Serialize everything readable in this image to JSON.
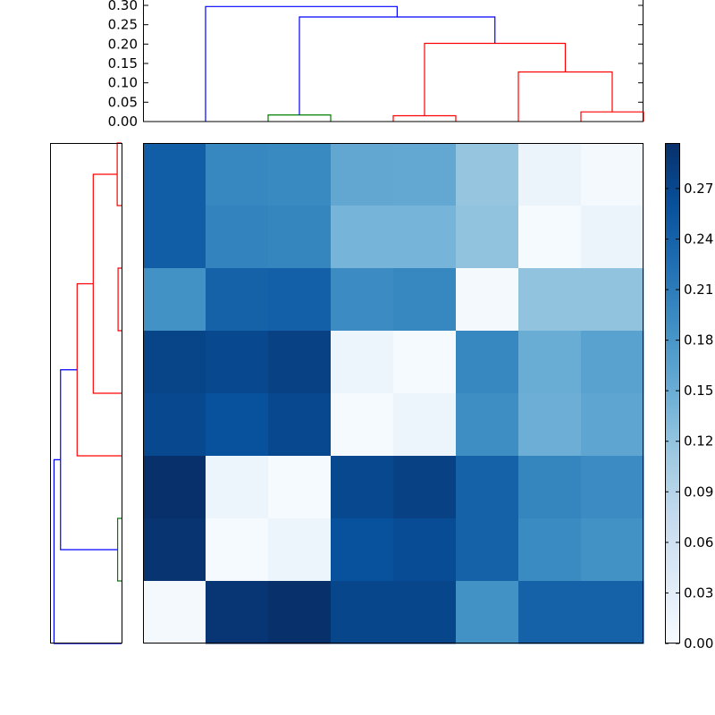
{
  "chart_data": [
    {
      "type": "dendrogram",
      "panel": "top",
      "ylim": [
        0,
        0.3
      ],
      "yticks": [
        "0.00",
        "0.05",
        "0.10",
        "0.15",
        "0.20",
        "0.25",
        "0.30"
      ],
      "leaf_count": 8,
      "links": [
        {
          "left": 2.5,
          "right": 3.5,
          "height": 0.017,
          "color": "#008000"
        },
        {
          "left": 4.5,
          "right": 5.5,
          "height": 0.015,
          "color": "#ff0000"
        },
        {
          "left": 7.5,
          "right": 8.5,
          "height": 0.025,
          "color": "#ff0000"
        },
        {
          "left": 6.5,
          "right": 8.0,
          "height": 0.128,
          "color": "#ff0000"
        },
        {
          "left": 5.0,
          "right": 7.25,
          "height": 0.202,
          "color": "#ff0000"
        },
        {
          "left": 3.0,
          "right": 6.125,
          "height": 0.27,
          "color": "#0000ff"
        },
        {
          "left": 1.5,
          "right": 4.5625,
          "height": 0.297,
          "color": "#0000ff"
        }
      ]
    },
    {
      "type": "dendrogram",
      "panel": "left",
      "orientation": "left",
      "leaf_count": 8,
      "links": [
        {
          "low": 0.5,
          "high": 1.5,
          "height": 0.01,
          "color": "#ff0000"
        },
        {
          "low": 2.5,
          "high": 3.5,
          "height": 0.008,
          "color": "#ff0000"
        },
        {
          "low": 1.0,
          "high": 4.5,
          "height": 0.065,
          "color": "#ff0000"
        },
        {
          "low": 2.75,
          "high": 5.5,
          "height": 0.102,
          "color": "#ff0000"
        },
        {
          "low": 6.5,
          "high": 7.5,
          "height": 0.009,
          "color": "#008000"
        },
        {
          "low": 4.125,
          "high": 7.0,
          "height": 0.14,
          "color": "#0000ff"
        },
        {
          "low": 5.5625,
          "high": 8.5,
          "height": 0.155,
          "color": "#0000ff"
        }
      ]
    },
    {
      "type": "heatmap",
      "colormap": "Blues",
      "vmin": 0,
      "vmax": 0.297,
      "values": [
        [
          0.245,
          0.198,
          0.195,
          0.158,
          0.156,
          0.118,
          0.018,
          0.005
        ],
        [
          0.245,
          0.202,
          0.2,
          0.14,
          0.14,
          0.12,
          0.003,
          0.018
        ],
        [
          0.185,
          0.24,
          0.242,
          0.192,
          0.198,
          0.004,
          0.12,
          0.12
        ],
        [
          0.275,
          0.27,
          0.277,
          0.015,
          0.003,
          0.198,
          0.15,
          0.165
        ],
        [
          0.27,
          0.26,
          0.27,
          0.003,
          0.015,
          0.19,
          0.148,
          0.16
        ],
        [
          0.297,
          0.015,
          0.003,
          0.27,
          0.277,
          0.24,
          0.2,
          0.192
        ],
        [
          0.292,
          0.003,
          0.015,
          0.26,
          0.265,
          0.24,
          0.193,
          0.185
        ],
        [
          0.004,
          0.29,
          0.297,
          0.272,
          0.272,
          0.185,
          0.24,
          0.24
        ]
      ]
    },
    {
      "type": "colorbar",
      "colormap": "Blues",
      "vmin": 0,
      "vmax": 0.297,
      "ticks": [
        {
          "value": 0.0,
          "label": "0.00"
        },
        {
          "value": 0.03,
          "label": "0.03"
        },
        {
          "value": 0.06,
          "label": "0.06"
        },
        {
          "value": 0.09,
          "label": "0.09"
        },
        {
          "value": 0.12,
          "label": "0.12"
        },
        {
          "value": 0.15,
          "label": "0.15"
        },
        {
          "value": 0.18,
          "label": "0.18"
        },
        {
          "value": 0.21,
          "label": "0.21"
        },
        {
          "value": 0.24,
          "label": "0.24"
        },
        {
          "value": 0.27,
          "label": "0.27"
        }
      ]
    }
  ]
}
